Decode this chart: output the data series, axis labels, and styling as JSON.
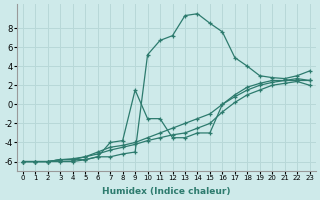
{
  "xlabel": "Humidex (Indice chaleur)",
  "xlim": [
    -0.5,
    23.5
  ],
  "ylim": [
    -7,
    10.5
  ],
  "xticks": [
    0,
    1,
    2,
    3,
    4,
    5,
    6,
    7,
    8,
    9,
    10,
    11,
    12,
    13,
    14,
    15,
    16,
    17,
    18,
    19,
    20,
    21,
    22,
    23
  ],
  "yticks": [
    -6,
    -4,
    -2,
    0,
    2,
    4,
    6,
    8
  ],
  "bg_color": "#ceeaea",
  "line_color": "#2d7b6e",
  "grid_color": "#b8d8d8",
  "series": [
    {
      "x": [
        0,
        1,
        2,
        3,
        4,
        5,
        6,
        7,
        8,
        9,
        10,
        11,
        12,
        13,
        14,
        15,
        16,
        17,
        18,
        19,
        20,
        21,
        22,
        23
      ],
      "y": [
        -6,
        -6,
        -6,
        -6,
        -6,
        -5.8,
        -5.5,
        -5.5,
        -5.2,
        -5,
        5.2,
        6.7,
        7.2,
        9.3,
        9.5,
        8.5,
        7.6,
        4.9,
        4.0,
        3.0,
        2.8,
        2.7,
        3.0,
        3.5
      ]
    },
    {
      "x": [
        0,
        1,
        2,
        3,
        4,
        5,
        6,
        7,
        8,
        9,
        10,
        11,
        12,
        13,
        14,
        15,
        16,
        17,
        18,
        19,
        20,
        21,
        22,
        23
      ],
      "y": [
        -6,
        -6,
        -6,
        -5.8,
        -5.8,
        -5.8,
        -5.5,
        -4.0,
        -3.8,
        1.5,
        -1.5,
        -1.5,
        -3.5,
        -3.5,
        -3.0,
        -3.0,
        0.0,
        1.0,
        1.8,
        2.2,
        2.5,
        2.5,
        2.7,
        2.5
      ]
    },
    {
      "x": [
        0,
        1,
        2,
        3,
        4,
        5,
        6,
        7,
        8,
        9,
        10,
        11,
        12,
        13,
        14,
        15,
        16,
        17,
        18,
        19,
        20,
        21,
        22,
        23
      ],
      "y": [
        -6,
        -6,
        -6,
        -5.8,
        -5.8,
        -5.5,
        -5.2,
        -4.8,
        -4.5,
        -4.2,
        -3.8,
        -3.5,
        -3.2,
        -3.0,
        -2.5,
        -2.0,
        -0.8,
        0.2,
        1.0,
        1.5,
        2.0,
        2.2,
        2.4,
        2.0
      ]
    },
    {
      "x": [
        0,
        1,
        2,
        3,
        4,
        5,
        6,
        7,
        8,
        9,
        10,
        11,
        12,
        13,
        14,
        15,
        16,
        17,
        18,
        19,
        20,
        21,
        22,
        23
      ],
      "y": [
        -6,
        -6,
        -6,
        -5.8,
        -5.7,
        -5.5,
        -5.0,
        -4.5,
        -4.3,
        -4.0,
        -3.5,
        -3.0,
        -2.5,
        -2.0,
        -1.5,
        -1.0,
        0.0,
        0.8,
        1.5,
        2.0,
        2.3,
        2.5,
        2.5,
        2.5
      ]
    }
  ]
}
